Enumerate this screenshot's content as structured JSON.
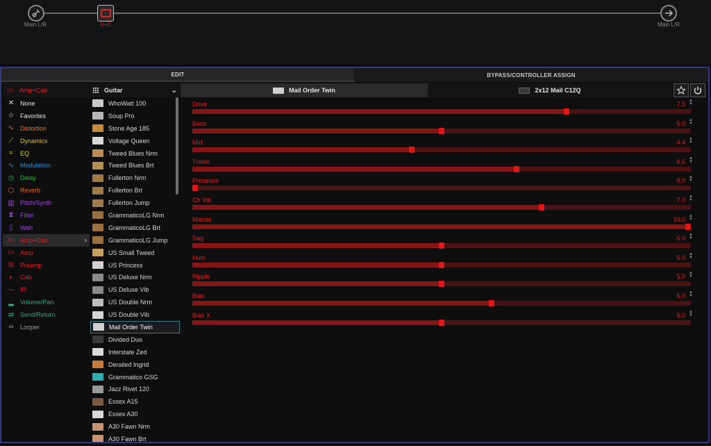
{
  "signal_chain": {
    "input_label": "Main L/R",
    "block_label": "A+C",
    "output_label": "Main L/R"
  },
  "tabs": {
    "edit": "EDIT",
    "bypass": "BYPASS/CONTROLLER ASSIGN"
  },
  "categories": {
    "header": "Amp+Cab",
    "items": [
      {
        "label": "None",
        "color": "#e6e6e6",
        "icon": "✕"
      },
      {
        "label": "Favorites",
        "color": "#e6e6e6",
        "icon": "☆"
      },
      {
        "label": "Distortion",
        "color": "#e8772a",
        "icon": "∿"
      },
      {
        "label": "Dynamics",
        "color": "#e0c020",
        "icon": "⟋"
      },
      {
        "label": "EQ",
        "color": "#d8cf20",
        "icon": "≈"
      },
      {
        "label": "Modulation",
        "color": "#2b8fd8",
        "icon": "∿"
      },
      {
        "label": "Delay",
        "color": "#28b04a",
        "icon": "◷"
      },
      {
        "label": "Reverb",
        "color": "#e06a2a",
        "icon": "⬡"
      },
      {
        "label": "Pitch/Synth",
        "color": "#a04ad8",
        "icon": "▥"
      },
      {
        "label": "Filter",
        "color": "#9a4ad0",
        "icon": "⧗"
      },
      {
        "label": "Wah",
        "color": "#9a4ad0",
        "icon": "▯"
      },
      {
        "label": "Amp+Cab",
        "color": "#e02222",
        "icon": "▭",
        "selected": true
      },
      {
        "label": "Amp",
        "color": "#e02222",
        "icon": "▭"
      },
      {
        "label": "Preamp",
        "color": "#e02222",
        "icon": "⊟"
      },
      {
        "label": "Cab",
        "color": "#e02222",
        "icon": "◐"
      },
      {
        "label": "IR",
        "color": "#e02222",
        "icon": "⏦"
      },
      {
        "label": "Volume/Pan",
        "color": "#2aa88a",
        "icon": "▂"
      },
      {
        "label": "Send/Return",
        "color": "#2aa88a",
        "icon": "⇄"
      },
      {
        "label": "Looper",
        "color": "#9a9a9a",
        "icon": "∞"
      }
    ]
  },
  "models": {
    "header": "Guitar",
    "items": [
      {
        "label": "WhoWatt 100",
        "thumb": "#c9c9c9"
      },
      {
        "label": "Soup Pro",
        "thumb": "#b8b8b8"
      },
      {
        "label": "Stone Age 185",
        "thumb": "#c58a3a"
      },
      {
        "label": "Voltage Queen",
        "thumb": "#d8d8d8"
      },
      {
        "label": "Tweed Blues Nrm",
        "thumb": "#b88d52"
      },
      {
        "label": "Tweed Blues Brt",
        "thumb": "#b88d52"
      },
      {
        "label": "Fullerton Nrm",
        "thumb": "#a07a48"
      },
      {
        "label": "Fullerton Brt",
        "thumb": "#a07a48"
      },
      {
        "label": "Fullerton Jump",
        "thumb": "#a07a48"
      },
      {
        "label": "GrammaticoLG Nrm",
        "thumb": "#9a7040"
      },
      {
        "label": "GrammaticoLG Brt",
        "thumb": "#9a7040"
      },
      {
        "label": "GrammaticoLG Jump",
        "thumb": "#9a7040"
      },
      {
        "label": "US Small Tweed",
        "thumb": "#c8a060"
      },
      {
        "label": "US Princess",
        "thumb": "#d0d0d0"
      },
      {
        "label": "US Deluxe Nrm",
        "thumb": "#8a8a8a"
      },
      {
        "label": "US Deluxe Vib",
        "thumb": "#8a8a8a"
      },
      {
        "label": "US Double Nrm",
        "thumb": "#bdbdbd"
      },
      {
        "label": "US Double Vib",
        "thumb": "#d5d5d5"
      },
      {
        "label": "Mail Order Twin",
        "thumb": "#d0d0d0",
        "selected": true
      },
      {
        "label": "Divided Duo",
        "thumb": "#3a3a3a"
      },
      {
        "label": "Interstate Zed",
        "thumb": "#d8d8d8"
      },
      {
        "label": "Derailed Ingrid",
        "thumb": "#c87a3a"
      },
      {
        "label": "Grammatico GSG",
        "thumb": "#2ab0b0"
      },
      {
        "label": "Jazz Rivet 120",
        "thumb": "#9a9a9a"
      },
      {
        "label": "Essex A15",
        "thumb": "#7a5a42"
      },
      {
        "label": "Essex A30",
        "thumb": "#d8d8d8"
      },
      {
        "label": "A30 Fawn Nrm",
        "thumb": "#c89470"
      },
      {
        "label": "A30 Fawn Brt",
        "thumb": "#c89470"
      }
    ]
  },
  "panel": {
    "amp_tab": "Mail Order Twin",
    "cab_tab": "2x12 Mail C12Q",
    "favorite_icon": "star-icon",
    "power_icon": "power-icon"
  },
  "params": [
    {
      "label": "Drive",
      "value": "7.5",
      "level": 0.75
    },
    {
      "label": "Bass",
      "value": "5.0",
      "level": 0.5
    },
    {
      "label": "Mid",
      "value": "4.4",
      "level": 0.44
    },
    {
      "label": "Treble",
      "value": "6.5",
      "level": 0.65
    },
    {
      "label": "Presence",
      "value": "0.0",
      "level": 0.0
    },
    {
      "label": "Ch Vol",
      "value": "7.0",
      "level": 0.7
    },
    {
      "label": "Master",
      "value": "10.0",
      "level": 1.0
    },
    {
      "label": "Sag",
      "value": "5.0",
      "level": 0.5
    },
    {
      "label": "Hum",
      "value": "5.0",
      "level": 0.5
    },
    {
      "label": "Ripple",
      "value": "5.0",
      "level": 0.5
    },
    {
      "label": "Bias",
      "value": "6.0",
      "level": 0.6
    },
    {
      "label": "Bias X",
      "value": "5.0",
      "level": 0.5
    }
  ]
}
